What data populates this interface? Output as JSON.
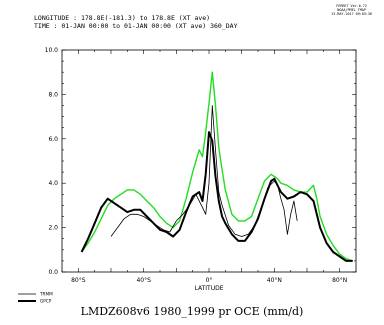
{
  "header": {
    "line1": "LONGITUDE : 178.8E(-181.3) to 178.8E (XT ave)",
    "line2": "TIME : 01-JAN 00:00 to 01-JAN 00:00 (XT ave) 360_DAY"
  },
  "stamp": {
    "line1": "FERRET Ver.6.72",
    "line2": "NOAA/PMEL TMAP",
    "line3": "13-MAY-2017 09:05:36"
  },
  "caption": "LMDZ608v6 1980_1999 pr OCE (mm/d)",
  "chart_data": {
    "type": "line",
    "xlabel": "LATITUDE",
    "ylabel": "",
    "xlim": [
      -90,
      90
    ],
    "ylim": [
      0,
      10
    ],
    "xticks": [
      -80,
      -40,
      0,
      40,
      80
    ],
    "xtick_labels": [
      "80°S",
      "40°S",
      "0°",
      "40°N",
      "80°N"
    ],
    "yticks": [
      0,
      2,
      4,
      6,
      8,
      10
    ],
    "ytick_labels": [
      "0.0",
      "2.0",
      "4.0",
      "6.0",
      "8.0",
      "10.0"
    ],
    "grid": false,
    "legend_placement": "bottom-left",
    "series": [
      {
        "name": "",
        "color": "#22dd22",
        "width": 1.4,
        "x": [
          -78,
          -74,
          -70,
          -66,
          -62,
          -58,
          -54,
          -50,
          -46,
          -42,
          -38,
          -34,
          -30,
          -26,
          -22,
          -18,
          -14,
          -10,
          -6,
          -4,
          -2,
          0,
          2,
          4,
          6,
          8,
          10,
          14,
          18,
          22,
          26,
          30,
          34,
          38,
          40,
          42,
          44,
          48,
          52,
          56,
          60,
          64,
          66,
          68,
          72,
          76,
          80,
          84,
          88
        ],
        "y": [
          0.9,
          1.3,
          1.8,
          2.4,
          3.0,
          3.3,
          3.5,
          3.7,
          3.7,
          3.5,
          3.2,
          2.9,
          2.5,
          2.2,
          2.0,
          2.3,
          3.3,
          4.5,
          5.5,
          5.2,
          6.3,
          7.6,
          9.0,
          7.5,
          5.6,
          4.6,
          3.7,
          2.6,
          2.3,
          2.3,
          2.5,
          3.3,
          4.1,
          4.4,
          4.3,
          4.2,
          4.0,
          3.9,
          3.7,
          3.6,
          3.6,
          3.9,
          3.3,
          2.5,
          1.7,
          1.2,
          0.8,
          0.6,
          0.5
        ]
      },
      {
        "name": "",
        "color": "#000000",
        "width": 0.8,
        "x": [
          -60,
          -56,
          -52,
          -48,
          -44,
          -40,
          -36,
          -32,
          -28,
          -24,
          -20,
          -16,
          -12,
          -8,
          -4,
          -2,
          0,
          2,
          4,
          6,
          8,
          12,
          16,
          20,
          24,
          28,
          32,
          36,
          40,
          42,
          44,
          46,
          48,
          50,
          52,
          54
        ],
        "y": [
          1.6,
          2.0,
          2.4,
          2.6,
          2.6,
          2.5,
          2.3,
          2.1,
          1.9,
          1.8,
          2.3,
          2.6,
          3.0,
          3.5,
          2.9,
          2.6,
          4.0,
          7.5,
          5.5,
          3.6,
          3.0,
          2.1,
          1.7,
          1.6,
          1.7,
          2.1,
          2.9,
          3.8,
          4.1,
          3.9,
          3.3,
          2.8,
          1.7,
          2.6,
          3.2,
          2.3
        ]
      },
      {
        "name": "",
        "color": "#000000",
        "width": 2.0,
        "x": [
          -78,
          -74,
          -70,
          -66,
          -62,
          -58,
          -54,
          -50,
          -46,
          -42,
          -38,
          -34,
          -30,
          -26,
          -22,
          -18,
          -14,
          -10,
          -6,
          -4,
          -2,
          0,
          2,
          4,
          6,
          8,
          10,
          14,
          18,
          22,
          26,
          30,
          34,
          38,
          40,
          42,
          44,
          48,
          52,
          56,
          60,
          64,
          66,
          68,
          72,
          76,
          80,
          84,
          88
        ],
        "y": [
          0.9,
          1.5,
          2.2,
          2.9,
          3.3,
          3.1,
          2.9,
          2.7,
          2.8,
          2.8,
          2.5,
          2.2,
          1.9,
          1.8,
          1.6,
          1.9,
          2.7,
          3.4,
          3.6,
          3.2,
          4.4,
          6.3,
          5.9,
          4.3,
          3.2,
          2.5,
          2.2,
          1.7,
          1.4,
          1.4,
          1.8,
          2.4,
          3.3,
          4.1,
          4.2,
          3.9,
          3.6,
          3.3,
          3.4,
          3.6,
          3.5,
          3.2,
          2.6,
          2.0,
          1.3,
          0.9,
          0.7,
          0.5,
          0.5
        ]
      }
    ],
    "legend": [
      {
        "label": "TRMM",
        "color": "#000000",
        "width": 0.8
      },
      {
        "label": "GPCP",
        "color": "#000000",
        "width": 2.0
      }
    ]
  }
}
